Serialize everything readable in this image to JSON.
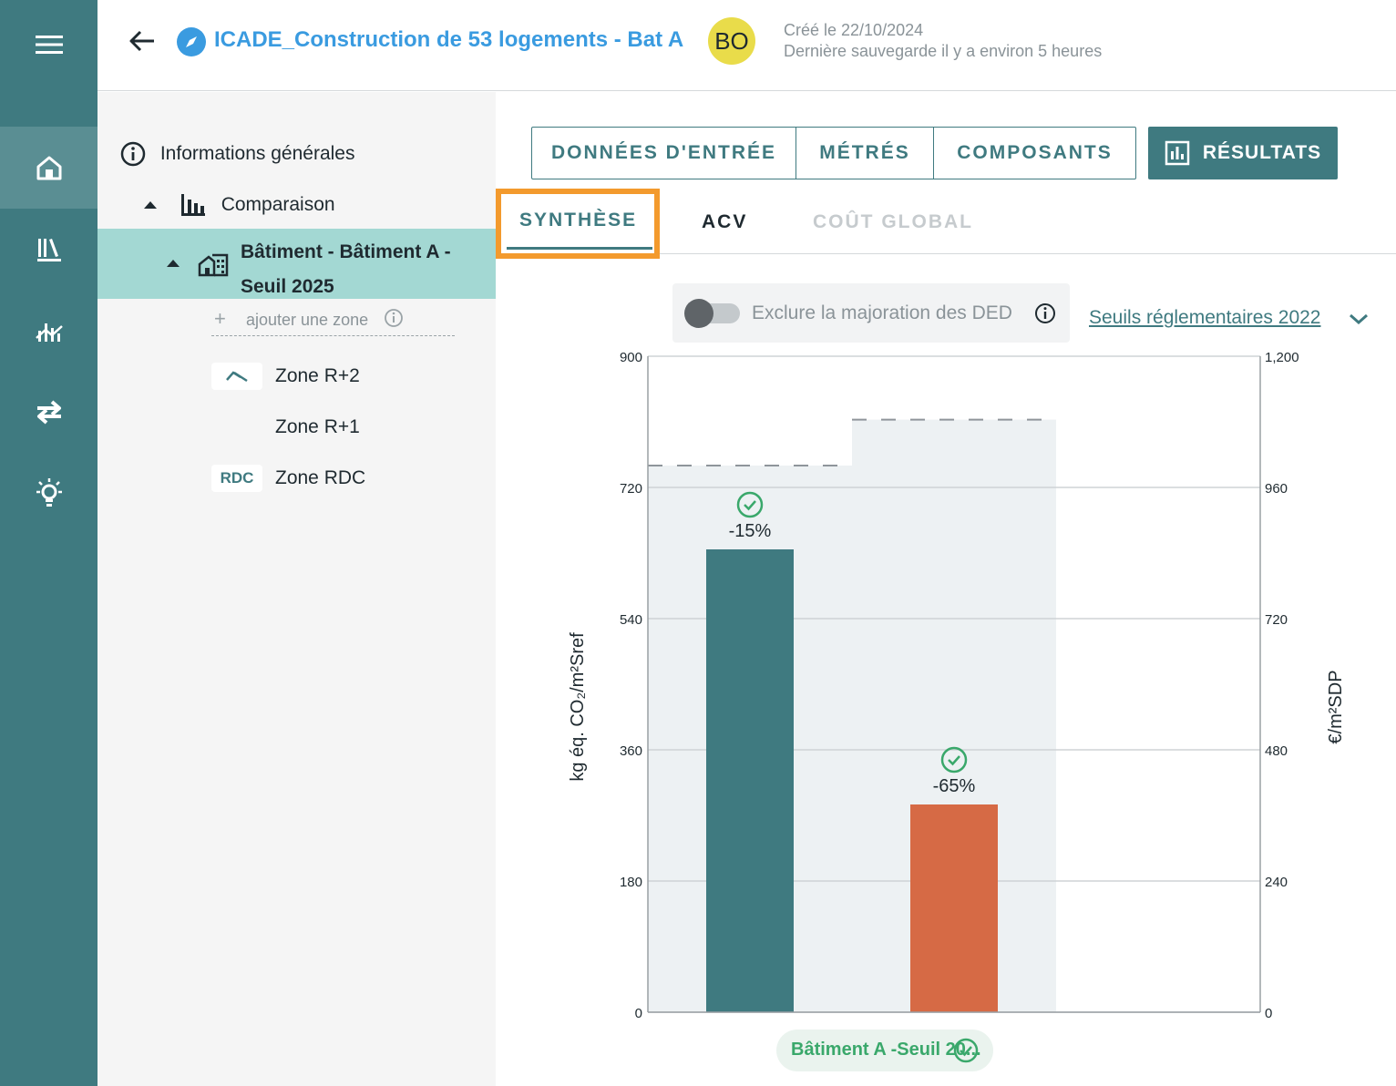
{
  "header": {
    "project_title": "ICADE_Construction de 53 logements - Bat A",
    "avatar_initials": "BO",
    "created": "Créé le 22/10/2024",
    "last_saved": "Dernière sauvegarde il y a environ 5 heures"
  },
  "rail": {
    "items": [
      "menu-icon",
      "home-icon",
      "library-icon",
      "analytics-icon",
      "swap-icon",
      "lightbulb-icon"
    ]
  },
  "tree": {
    "general_info": "Informations générales",
    "comparison": "Comparaison",
    "selected_building": "Bâtiment - Bâtiment A - Seuil 2025",
    "selected_building_line1": "Bâtiment - Bâtiment A -",
    "selected_building_line2": "Seuil 2025",
    "add_zone": "ajouter une zone",
    "zones": [
      {
        "badge": "",
        "label": "Zone R+2"
      },
      {
        "badge": "",
        "label": "Zone R+1"
      },
      {
        "badge": "RDC",
        "label": "Zone RDC"
      }
    ]
  },
  "tabs": {
    "items": [
      "DONNÉES D'ENTRÉE",
      "MÉTRÉS",
      "COMPOSANTS"
    ],
    "results": "RÉSULTATS"
  },
  "subtabs": {
    "synthese": "SYNTHÈSE",
    "acv": "ACV",
    "cout_global": "COÛT GLOBAL"
  },
  "controls": {
    "toggle_label": "Exclure la majoration des DED",
    "toggle_on": false,
    "threshold_select": "Seuils réglementaires 2022"
  },
  "colors": {
    "teal": "#3f7a80",
    "orange": "#d66a45",
    "highlight": "#f39a2d",
    "link_blue": "#3a9be0",
    "check_green": "#3aa86b"
  },
  "chart_data": {
    "type": "bar",
    "ylabel": "kg éq. CO₂/m²Sref",
    "y2label": "€/m²SDP",
    "ylim": [
      0,
      900
    ],
    "y2lim": [
      0,
      1200
    ],
    "yticks": [
      0,
      180,
      360,
      540,
      720,
      900
    ],
    "y2ticks": [
      0,
      240,
      480,
      720,
      960,
      1200
    ],
    "thresholds": [
      750,
      813
    ],
    "bars": [
      {
        "value": 635,
        "color": "#3f7a80",
        "label": "-15%"
      },
      {
        "value": 285,
        "color": "#d66a45",
        "label": "-65%"
      }
    ],
    "x_label": "Bâtiment A -Seuil 20..."
  }
}
